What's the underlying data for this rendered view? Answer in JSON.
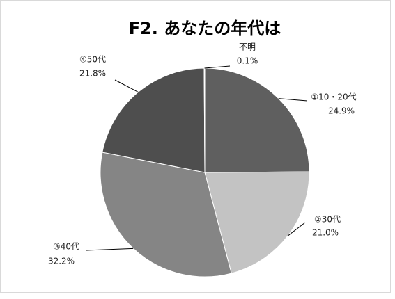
{
  "chart_data": {
    "type": "pie",
    "title": "F2. あなたの年代は",
    "categories": [
      "①10・20代",
      "②30代",
      "③40代",
      "④50代",
      "不明"
    ],
    "values": [
      24.9,
      21.0,
      32.2,
      21.8,
      0.1
    ],
    "value_labels": [
      "24.9%",
      "21.0%",
      "32.2%",
      "21.8%",
      "0.1%"
    ],
    "colors": [
      "#5f5f5f",
      "#c3c3c3",
      "#858585",
      "#4e4e4e",
      "#9a9a9a"
    ]
  }
}
